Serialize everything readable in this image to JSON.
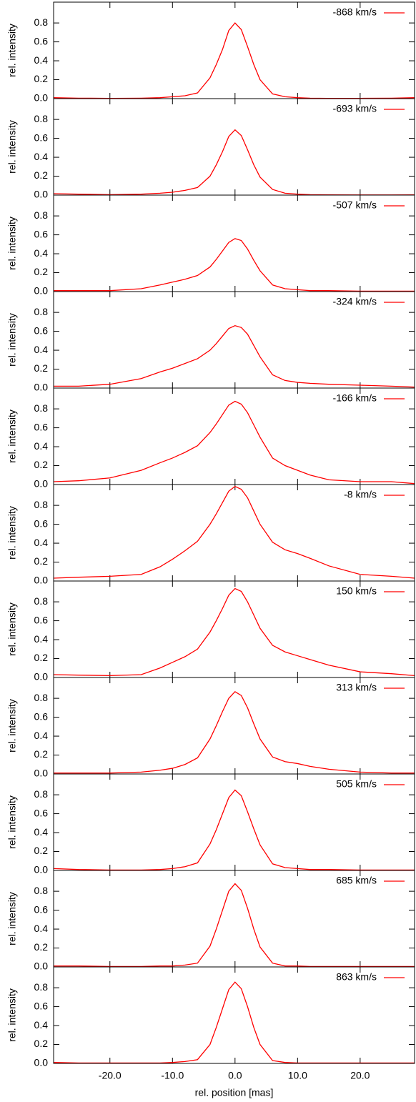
{
  "chart_data": [
    {
      "type": "line",
      "ylabel": "rel. intensity",
      "xlim": [
        -29,
        28.7
      ],
      "ylim": [
        0,
        1.02
      ],
      "legend": "upper right",
      "yticks": [
        {
          "value": 0,
          "label": "0.0"
        },
        0.2,
        0.4,
        0.6,
        0.8
      ],
      "x": [
        -29,
        -25,
        -20,
        -15,
        -12,
        -10,
        -8,
        -6,
        -4,
        -3,
        -2,
        -1,
        0,
        1,
        2,
        3,
        4,
        6,
        8,
        10,
        12,
        15,
        20,
        25,
        28.7
      ],
      "series": [
        {
          "name": "-868 km/s",
          "color": "#ff0000",
          "values": [
            0.01,
            0.005,
            0.003,
            0.005,
            0.01,
            0.02,
            0.03,
            0.06,
            0.22,
            0.36,
            0.52,
            0.72,
            0.8,
            0.73,
            0.55,
            0.36,
            0.2,
            0.05,
            0.02,
            0.01,
            0.005,
            0.003,
            0.003,
            0.005,
            0.01
          ]
        }
      ]
    },
    {
      "type": "line",
      "ylabel": "rel. intensity",
      "xlim": [
        -29,
        28.7
      ],
      "ylim": [
        0,
        1.02
      ],
      "legend": "upper right",
      "yticks": [
        {
          "value": 0,
          "label": "0.0"
        },
        0.2,
        0.4,
        0.6,
        0.8
      ],
      "x": [
        -29,
        -25,
        -20,
        -15,
        -12,
        -10,
        -8,
        -6,
        -4,
        -3,
        -2,
        -1,
        0,
        1,
        2,
        3,
        4,
        6,
        8,
        10,
        12,
        15,
        20,
        25,
        28.7
      ],
      "series": [
        {
          "name": "-693 km/s",
          "color": "#ff0000",
          "values": [
            0.015,
            0.01,
            0.005,
            0.01,
            0.02,
            0.03,
            0.05,
            0.08,
            0.2,
            0.32,
            0.46,
            0.62,
            0.69,
            0.63,
            0.48,
            0.32,
            0.19,
            0.06,
            0.02,
            0.01,
            0.005,
            0.003,
            0.002,
            0.002,
            0.003
          ]
        }
      ]
    },
    {
      "type": "line",
      "ylabel": "rel. intensity",
      "xlim": [
        -29,
        28.7
      ],
      "ylim": [
        0,
        1.02
      ],
      "legend": "upper right",
      "yticks": [
        {
          "value": 0,
          "label": "0.0"
        },
        0.2,
        0.4,
        0.6,
        0.8
      ],
      "x": [
        -29,
        -25,
        -20,
        -15,
        -12,
        -10,
        -8,
        -6,
        -4,
        -3,
        -2,
        -1,
        0,
        1,
        2,
        3,
        4,
        6,
        8,
        10,
        12,
        15,
        20,
        25,
        28.7
      ],
      "series": [
        {
          "name": "-507 km/s",
          "color": "#ff0000",
          "values": [
            0.01,
            0.01,
            0.01,
            0.03,
            0.07,
            0.1,
            0.13,
            0.17,
            0.26,
            0.34,
            0.43,
            0.52,
            0.56,
            0.54,
            0.45,
            0.33,
            0.22,
            0.07,
            0.03,
            0.02,
            0.01,
            0.01,
            0.005,
            0.005,
            0.005
          ]
        }
      ]
    },
    {
      "type": "line",
      "ylabel": "rel. intensity",
      "xlim": [
        -29,
        28.7
      ],
      "ylim": [
        0,
        1.02
      ],
      "legend": "upper right",
      "yticks": [
        {
          "value": 0,
          "label": "0.0"
        },
        0.2,
        0.4,
        0.6,
        0.8
      ],
      "x": [
        -29,
        -25,
        -20,
        -15,
        -12,
        -10,
        -8,
        -6,
        -4,
        -3,
        -2,
        -1,
        0,
        1,
        2,
        3,
        4,
        6,
        8,
        10,
        12,
        15,
        20,
        25,
        28.7
      ],
      "series": [
        {
          "name": "-324 km/s",
          "color": "#ff0000",
          "values": [
            0.02,
            0.02,
            0.04,
            0.1,
            0.17,
            0.21,
            0.26,
            0.31,
            0.4,
            0.47,
            0.55,
            0.63,
            0.66,
            0.64,
            0.57,
            0.45,
            0.33,
            0.14,
            0.08,
            0.06,
            0.05,
            0.04,
            0.03,
            0.02,
            0.01
          ]
        }
      ]
    },
    {
      "type": "line",
      "ylabel": "rel. intensity",
      "xlim": [
        -29,
        28.7
      ],
      "ylim": [
        0,
        1.02
      ],
      "legend": "upper right",
      "yticks": [
        {
          "value": 0,
          "label": "0.0"
        },
        0.2,
        0.4,
        0.6,
        0.8
      ],
      "x": [
        -29,
        -25,
        -20,
        -15,
        -12,
        -10,
        -8,
        -6,
        -4,
        -3,
        -2,
        -1,
        0,
        1,
        2,
        3,
        4,
        6,
        8,
        10,
        12,
        15,
        20,
        25,
        28.7
      ],
      "series": [
        {
          "name": "-166 km/s",
          "color": "#ff0000",
          "values": [
            0.03,
            0.04,
            0.07,
            0.15,
            0.23,
            0.28,
            0.34,
            0.41,
            0.55,
            0.64,
            0.74,
            0.84,
            0.88,
            0.85,
            0.76,
            0.63,
            0.5,
            0.28,
            0.2,
            0.15,
            0.1,
            0.05,
            0.03,
            0.03,
            0.01
          ]
        }
      ]
    },
    {
      "type": "line",
      "ylabel": "rel. intensity",
      "xlim": [
        -29,
        28.7
      ],
      "ylim": [
        0,
        1.02
      ],
      "legend": "upper right",
      "yticks": [
        {
          "value": 0,
          "label": "0.0"
        },
        0.2,
        0.4,
        0.6,
        0.8
      ],
      "x": [
        -29,
        -25,
        -20,
        -15,
        -12,
        -10,
        -8,
        -6,
        -4,
        -3,
        -2,
        -1,
        0,
        1,
        2,
        3,
        4,
        6,
        8,
        10,
        12,
        15,
        20,
        25,
        28.7
      ],
      "series": [
        {
          "name": "-8 km/s",
          "color": "#ff0000",
          "values": [
            0.03,
            0.04,
            0.05,
            0.07,
            0.15,
            0.23,
            0.32,
            0.42,
            0.6,
            0.71,
            0.83,
            0.95,
            1.0,
            0.97,
            0.88,
            0.74,
            0.6,
            0.41,
            0.33,
            0.29,
            0.24,
            0.16,
            0.07,
            0.05,
            0.03
          ]
        }
      ]
    },
    {
      "type": "line",
      "ylabel": "rel. intensity",
      "xlim": [
        -29,
        28.7
      ],
      "ylim": [
        0,
        1.02
      ],
      "legend": "upper right",
      "yticks": [
        {
          "value": 0,
          "label": "0.0"
        },
        0.2,
        0.4,
        0.6,
        0.8
      ],
      "x": [
        -29,
        -25,
        -20,
        -15,
        -12,
        -10,
        -8,
        -6,
        -4,
        -3,
        -2,
        -1,
        0,
        1,
        2,
        3,
        4,
        6,
        8,
        10,
        12,
        15,
        20,
        25,
        28.7
      ],
      "series": [
        {
          "name": "150 km/s",
          "color": "#ff0000",
          "values": [
            0.03,
            0.025,
            0.02,
            0.03,
            0.1,
            0.16,
            0.22,
            0.3,
            0.48,
            0.6,
            0.73,
            0.87,
            0.94,
            0.91,
            0.8,
            0.66,
            0.52,
            0.34,
            0.27,
            0.23,
            0.19,
            0.13,
            0.06,
            0.04,
            0.02
          ]
        }
      ]
    },
    {
      "type": "line",
      "ylabel": "rel. intensity",
      "xlim": [
        -29,
        28.7
      ],
      "ylim": [
        0,
        1.02
      ],
      "legend": "upper right",
      "yticks": [
        {
          "value": 0,
          "label": "0.0"
        },
        0.2,
        0.4,
        0.6,
        0.8
      ],
      "x": [
        -29,
        -25,
        -20,
        -15,
        -12,
        -10,
        -8,
        -6,
        -4,
        -3,
        -2,
        -1,
        0,
        1,
        2,
        3,
        4,
        6,
        8,
        10,
        12,
        15,
        20,
        25,
        28.7
      ],
      "series": [
        {
          "name": "313 km/s",
          "color": "#ff0000",
          "values": [
            0.01,
            0.01,
            0.01,
            0.02,
            0.04,
            0.06,
            0.1,
            0.17,
            0.37,
            0.51,
            0.66,
            0.8,
            0.87,
            0.83,
            0.7,
            0.53,
            0.37,
            0.18,
            0.13,
            0.11,
            0.08,
            0.05,
            0.02,
            0.01,
            0.01
          ]
        }
      ]
    },
    {
      "type": "line",
      "ylabel": "rel. intensity",
      "xlim": [
        -29,
        28.7
      ],
      "ylim": [
        0,
        1.02
      ],
      "legend": "upper right",
      "yticks": [
        {
          "value": 0,
          "label": "0.0"
        },
        0.2,
        0.4,
        0.6,
        0.8
      ],
      "x": [
        -29,
        -25,
        -20,
        -15,
        -12,
        -10,
        -8,
        -6,
        -4,
        -3,
        -2,
        -1,
        0,
        1,
        2,
        3,
        4,
        6,
        8,
        10,
        12,
        15,
        20,
        25,
        28.7
      ],
      "series": [
        {
          "name": "505 km/s",
          "color": "#ff0000",
          "values": [
            0.02,
            0.01,
            0.005,
            0.005,
            0.01,
            0.02,
            0.04,
            0.08,
            0.28,
            0.43,
            0.6,
            0.77,
            0.85,
            0.79,
            0.62,
            0.44,
            0.27,
            0.07,
            0.03,
            0.02,
            0.01,
            0.01,
            0.005,
            0.005,
            0.005
          ]
        }
      ]
    },
    {
      "type": "line",
      "ylabel": "rel. intensity",
      "xlim": [
        -29,
        28.7
      ],
      "ylim": [
        0,
        1.02
      ],
      "legend": "upper right",
      "yticks": [
        {
          "value": 0,
          "label": "0.0"
        },
        0.2,
        0.4,
        0.6,
        0.8
      ],
      "x": [
        -29,
        -25,
        -20,
        -15,
        -12,
        -10,
        -8,
        -6,
        -4,
        -3,
        -2,
        -1,
        0,
        1,
        2,
        3,
        4,
        6,
        8,
        10,
        12,
        15,
        20,
        25,
        28.7
      ],
      "series": [
        {
          "name": "685 km/s",
          "color": "#ff0000",
          "values": [
            0.01,
            0.01,
            0.005,
            0.005,
            0.01,
            0.01,
            0.02,
            0.04,
            0.22,
            0.4,
            0.6,
            0.8,
            0.88,
            0.81,
            0.62,
            0.4,
            0.21,
            0.04,
            0.01,
            0.01,
            0.005,
            0.005,
            0.005,
            0.005,
            0.005
          ]
        }
      ]
    },
    {
      "type": "line",
      "ylabel": "rel. intensity",
      "xlabel": "rel. position [mas]",
      "xlim": [
        -29,
        28.7
      ],
      "ylim": [
        0,
        1.02
      ],
      "legend": "upper right",
      "yticks": [
        {
          "value": 0,
          "label": "0.0"
        },
        0.2,
        0.4,
        0.6,
        0.8
      ],
      "xticks": [
        {
          "value": -20,
          "label": "-20.0"
        },
        {
          "value": -10,
          "label": "-10.0"
        },
        {
          "value": 0,
          "label": "0.0"
        },
        {
          "value": 10,
          "label": "10.0"
        },
        {
          "value": 20,
          "label": "20.0"
        }
      ],
      "x": [
        -29,
        -25,
        -20,
        -15,
        -12,
        -10,
        -8,
        -6,
        -4,
        -3,
        -2,
        -1,
        0,
        1,
        2,
        3,
        4,
        6,
        8,
        10,
        12,
        15,
        20,
        25,
        28.7
      ],
      "series": [
        {
          "name": "863 km/s",
          "color": "#ff0000",
          "values": [
            0.01,
            0.005,
            0.005,
            0.005,
            0.005,
            0.01,
            0.02,
            0.04,
            0.2,
            0.38,
            0.58,
            0.78,
            0.86,
            0.79,
            0.6,
            0.38,
            0.2,
            0.03,
            0.01,
            0.005,
            0.005,
            0.005,
            0.005,
            0.005,
            0.005
          ]
        }
      ]
    }
  ]
}
